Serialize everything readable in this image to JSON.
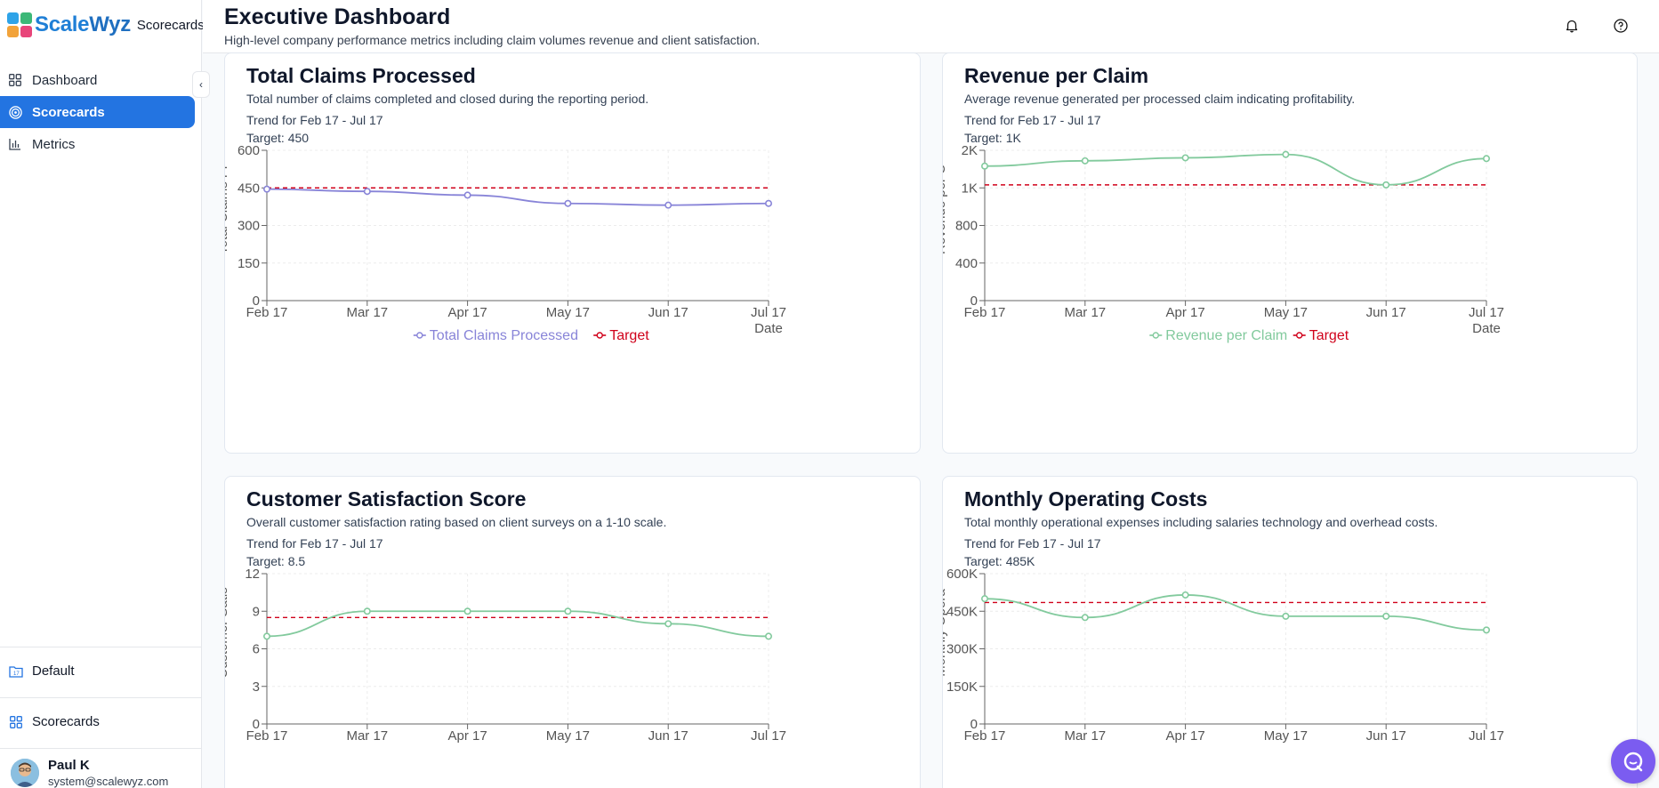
{
  "brand": {
    "name_part1": "Scale",
    "name_part2": "Wyz",
    "product": "Scorecards"
  },
  "sidebar": {
    "items": [
      {
        "label": "Dashboard",
        "icon": "grid-icon",
        "active": false
      },
      {
        "label": "Scorecards",
        "icon": "target-icon",
        "active": true
      },
      {
        "label": "Metrics",
        "icon": "bar-chart-icon",
        "active": false
      }
    ],
    "workspace": "Default",
    "bottom_link": "Scorecards",
    "user": {
      "name": "Paul K",
      "email": "system@scalewyz.com"
    }
  },
  "header": {
    "title": "Executive Dashboard",
    "subtitle": "High-level company performance metrics including claim volumes revenue and client satisfaction."
  },
  "colors": {
    "accent": "#2374e1",
    "series_purple": "#8884d8",
    "series_green": "#82ca9d",
    "target": "#d0021b"
  },
  "cards": [
    {
      "title": "Total Claims Processed",
      "description": "Total number of claims completed and closed during the reporting period.",
      "trend": "Trend for Feb 17 - Jul 17",
      "target_text": "Target: 450"
    },
    {
      "title": "Revenue per Claim",
      "description": "Average revenue generated per processed claim indicating profitability.",
      "trend": "Trend for Feb 17 - Jul 17",
      "target_text": "Target: 1K"
    },
    {
      "title": "Customer Satisfaction Score",
      "description": "Overall customer satisfaction rating based on client surveys on a 1-10 scale.",
      "trend": "Trend for Feb 17 - Jul 17",
      "target_text": "Target: 8.5"
    },
    {
      "title": "Monthly Operating Costs",
      "description": "Total monthly operational expenses including salaries technology and overhead costs.",
      "trend": "Trend for Feb 17 - Jul 17",
      "target_text": "Target: 485K"
    }
  ],
  "chart_data": [
    {
      "type": "line",
      "x": [
        "Feb 17",
        "Mar 17",
        "Apr 17",
        "May 17",
        "Jun 17",
        "Jul 17"
      ],
      "xlabel": "Date",
      "ylabel": "Total Claims Pr",
      "yticks": [
        "0",
        "150",
        "300",
        "450",
        "600"
      ],
      "ylim": [
        0,
        600
      ],
      "series": [
        {
          "name": "Total Claims Processed",
          "color": "#8884d8",
          "values": [
            445,
            436,
            421,
            388,
            381,
            388
          ]
        },
        {
          "name": "Target",
          "color": "#d0021b",
          "dashed": true,
          "values": [
            450,
            450,
            450,
            450,
            450,
            450
          ]
        }
      ]
    },
    {
      "type": "line",
      "x": [
        "Feb 17",
        "Mar 17",
        "Apr 17",
        "May 17",
        "Jun 17",
        "Jul 17"
      ],
      "xlabel": "Date",
      "ylabel": "Revenue per C",
      "yticks": [
        "0",
        "400",
        "800",
        "1K",
        "2K"
      ],
      "scale": "categorical",
      "series": [
        {
          "name": "Revenue per Claim",
          "color": "#82ca9d",
          "values": [
            1.58,
            1.72,
            1.8,
            1.89,
            1.08,
            1.78
          ]
        },
        {
          "name": "Target",
          "color": "#d0021b",
          "dashed": true,
          "values": [
            1.08,
            1.08,
            1.08,
            1.08,
            1.08,
            1.08
          ]
        }
      ]
    },
    {
      "type": "line",
      "x": [
        "Feb 17",
        "Mar 17",
        "Apr 17",
        "May 17",
        "Jun 17",
        "Jul 17"
      ],
      "ylabel": "Customer Satis",
      "yticks": [
        "0",
        "3",
        "6",
        "9",
        "12"
      ],
      "ylim": [
        0,
        12
      ],
      "series": [
        {
          "name": "Customer Satisfaction Score",
          "color": "#82ca9d",
          "values": [
            7.0,
            9.0,
            9.0,
            9.0,
            8.0,
            7.0
          ]
        },
        {
          "name": "Target",
          "color": "#d0021b",
          "dashed": true,
          "values": [
            8.5,
            8.5,
            8.5,
            8.5,
            8.5,
            8.5
          ]
        }
      ]
    },
    {
      "type": "line",
      "x": [
        "Feb 17",
        "Mar 17",
        "Apr 17",
        "May 17",
        "Jun 17",
        "Jul 17"
      ],
      "ylabel": "Monthly Opera",
      "yticks": [
        "0",
        "150K",
        "300K",
        "450K",
        "600K"
      ],
      "ylim": [
        0,
        600000
      ],
      "series": [
        {
          "name": "Monthly Operating Costs",
          "color": "#82ca9d",
          "values": [
            500000,
            425000,
            515000,
            430000,
            430000,
            375000
          ]
        },
        {
          "name": "Target",
          "color": "#d0021b",
          "dashed": true,
          "values": [
            485000,
            485000,
            485000,
            485000,
            485000,
            485000
          ]
        }
      ]
    }
  ]
}
